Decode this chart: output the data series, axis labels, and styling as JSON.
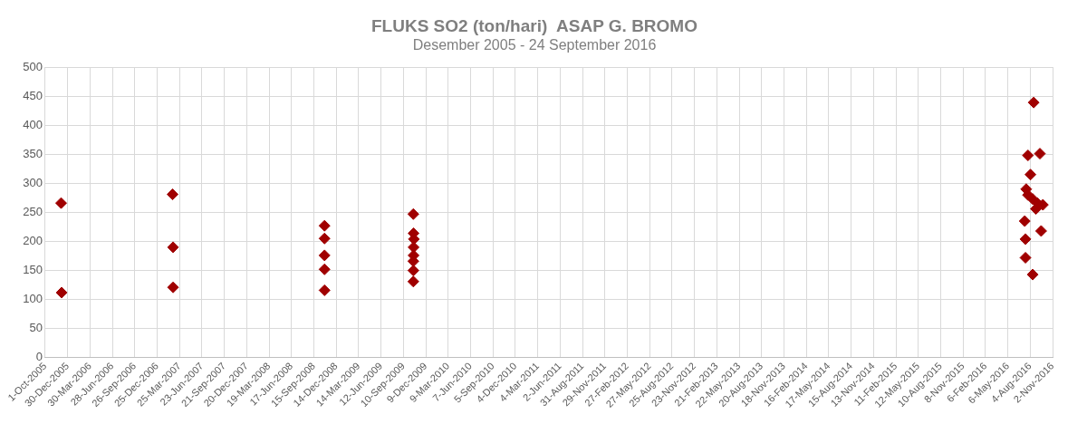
{
  "chart_data": {
    "type": "scatter",
    "title": "FLUKS SO2 (ton/hari)  ASAP G. BROMO",
    "subtitle": "Desember 2005 - 24 September 2016",
    "marker": "diamond",
    "grid": true,
    "legend": false,
    "xlim": [
      "2005-10-01",
      "2016-11-02"
    ],
    "xticks": [
      {
        "value": "2005-10-01",
        "label": "1-Oct-2005"
      },
      {
        "value": "2005-12-30",
        "label": "30-Dec-2005"
      },
      {
        "value": "2006-03-30",
        "label": "30-Mar-2006"
      },
      {
        "value": "2006-06-28",
        "label": "28-Jun-2006"
      },
      {
        "value": "2006-09-26",
        "label": "26-Sep-2006"
      },
      {
        "value": "2006-12-25",
        "label": "25-Dec-2006"
      },
      {
        "value": "2007-03-25",
        "label": "25-Mar-2007"
      },
      {
        "value": "2007-06-23",
        "label": "23-Jun-2007"
      },
      {
        "value": "2007-09-21",
        "label": "21-Sep-2007"
      },
      {
        "value": "2007-12-20",
        "label": "20-Dec-2007"
      },
      {
        "value": "2008-03-19",
        "label": "19-Mar-2008"
      },
      {
        "value": "2008-06-17",
        "label": "17-Jun-2008"
      },
      {
        "value": "2008-09-15",
        "label": "15-Sep-2008"
      },
      {
        "value": "2008-12-14",
        "label": "14-Dec-2008"
      },
      {
        "value": "2009-03-14",
        "label": "14-Mar-2009"
      },
      {
        "value": "2009-06-12",
        "label": "12-Jun-2009"
      },
      {
        "value": "2009-09-10",
        "label": "10-Sep-2009"
      },
      {
        "value": "2009-12-09",
        "label": "9-Dec-2009"
      },
      {
        "value": "2010-03-09",
        "label": "9-Mar-2010"
      },
      {
        "value": "2010-06-07",
        "label": "7-Jun-2010"
      },
      {
        "value": "2010-09-05",
        "label": "5-Sep-2010"
      },
      {
        "value": "2010-12-04",
        "label": "4-Dec-2010"
      },
      {
        "value": "2011-03-04",
        "label": "4-Mar-2011"
      },
      {
        "value": "2011-06-02",
        "label": "2-Jun-2011"
      },
      {
        "value": "2011-08-31",
        "label": "31-Aug-2011"
      },
      {
        "value": "2011-11-29",
        "label": "29-Nov-2011"
      },
      {
        "value": "2012-02-27",
        "label": "27-Feb-2012"
      },
      {
        "value": "2012-05-27",
        "label": "27-May-2012"
      },
      {
        "value": "2012-08-25",
        "label": "25-Aug-2012"
      },
      {
        "value": "2012-11-23",
        "label": "23-Nov-2012"
      },
      {
        "value": "2013-02-21",
        "label": "21-Feb-2013"
      },
      {
        "value": "2013-05-22",
        "label": "22-May-2013"
      },
      {
        "value": "2013-08-20",
        "label": "20-Aug-2013"
      },
      {
        "value": "2013-11-18",
        "label": "18-Nov-2013"
      },
      {
        "value": "2014-02-16",
        "label": "16-Feb-2014"
      },
      {
        "value": "2014-05-17",
        "label": "17-May-2014"
      },
      {
        "value": "2014-08-15",
        "label": "15-Aug-2014"
      },
      {
        "value": "2014-11-13",
        "label": "13-Nov-2014"
      },
      {
        "value": "2015-02-11",
        "label": "11-Feb-2015"
      },
      {
        "value": "2015-05-12",
        "label": "12-May-2015"
      },
      {
        "value": "2015-08-10",
        "label": "10-Aug-2015"
      },
      {
        "value": "2015-11-08",
        "label": "8-Nov-2015"
      },
      {
        "value": "2016-02-06",
        "label": "6-Feb-2016"
      },
      {
        "value": "2016-05-06",
        "label": "6-May-2016"
      },
      {
        "value": "2016-08-04",
        "label": "4-Aug-2016"
      },
      {
        "value": "2016-11-02",
        "label": "2-Nov-2016"
      }
    ],
    "ylim": [
      0,
      500
    ],
    "yticks": [
      0,
      50,
      100,
      150,
      200,
      250,
      300,
      350,
      400,
      450,
      500
    ],
    "series": [
      {
        "color": "#a00000",
        "x": [
          "2005-12-04",
          "2005-12-06",
          "2007-02-25",
          "2007-02-27",
          "2007-02-27",
          "2008-10-28",
          "2008-10-28",
          "2008-10-28",
          "2008-10-28",
          "2008-10-28",
          "2009-10-20",
          "2009-10-21",
          "2009-10-22",
          "2009-10-21",
          "2009-10-21",
          "2009-10-20",
          "2009-10-20",
          "2009-10-20",
          "2016-08-18",
          "2016-07-26",
          "2016-09-12",
          "2016-08-05",
          "2016-07-19",
          "2016-07-26",
          "2016-08-14",
          "2016-09-02",
          "2016-09-24",
          "2016-08-27",
          "2016-07-13",
          "2016-09-17",
          "2016-07-16",
          "2016-07-16",
          "2016-08-14"
        ],
        "values": [
          266,
          112,
          281,
          190,
          121,
          227,
          205,
          176,
          152,
          116,
          247,
          214,
          204,
          190,
          176,
          166,
          150,
          131,
          439,
          348,
          351,
          315,
          290,
          280,
          273,
          266,
          263,
          256,
          235,
          218,
          204,
          172,
          143
        ]
      }
    ]
  }
}
